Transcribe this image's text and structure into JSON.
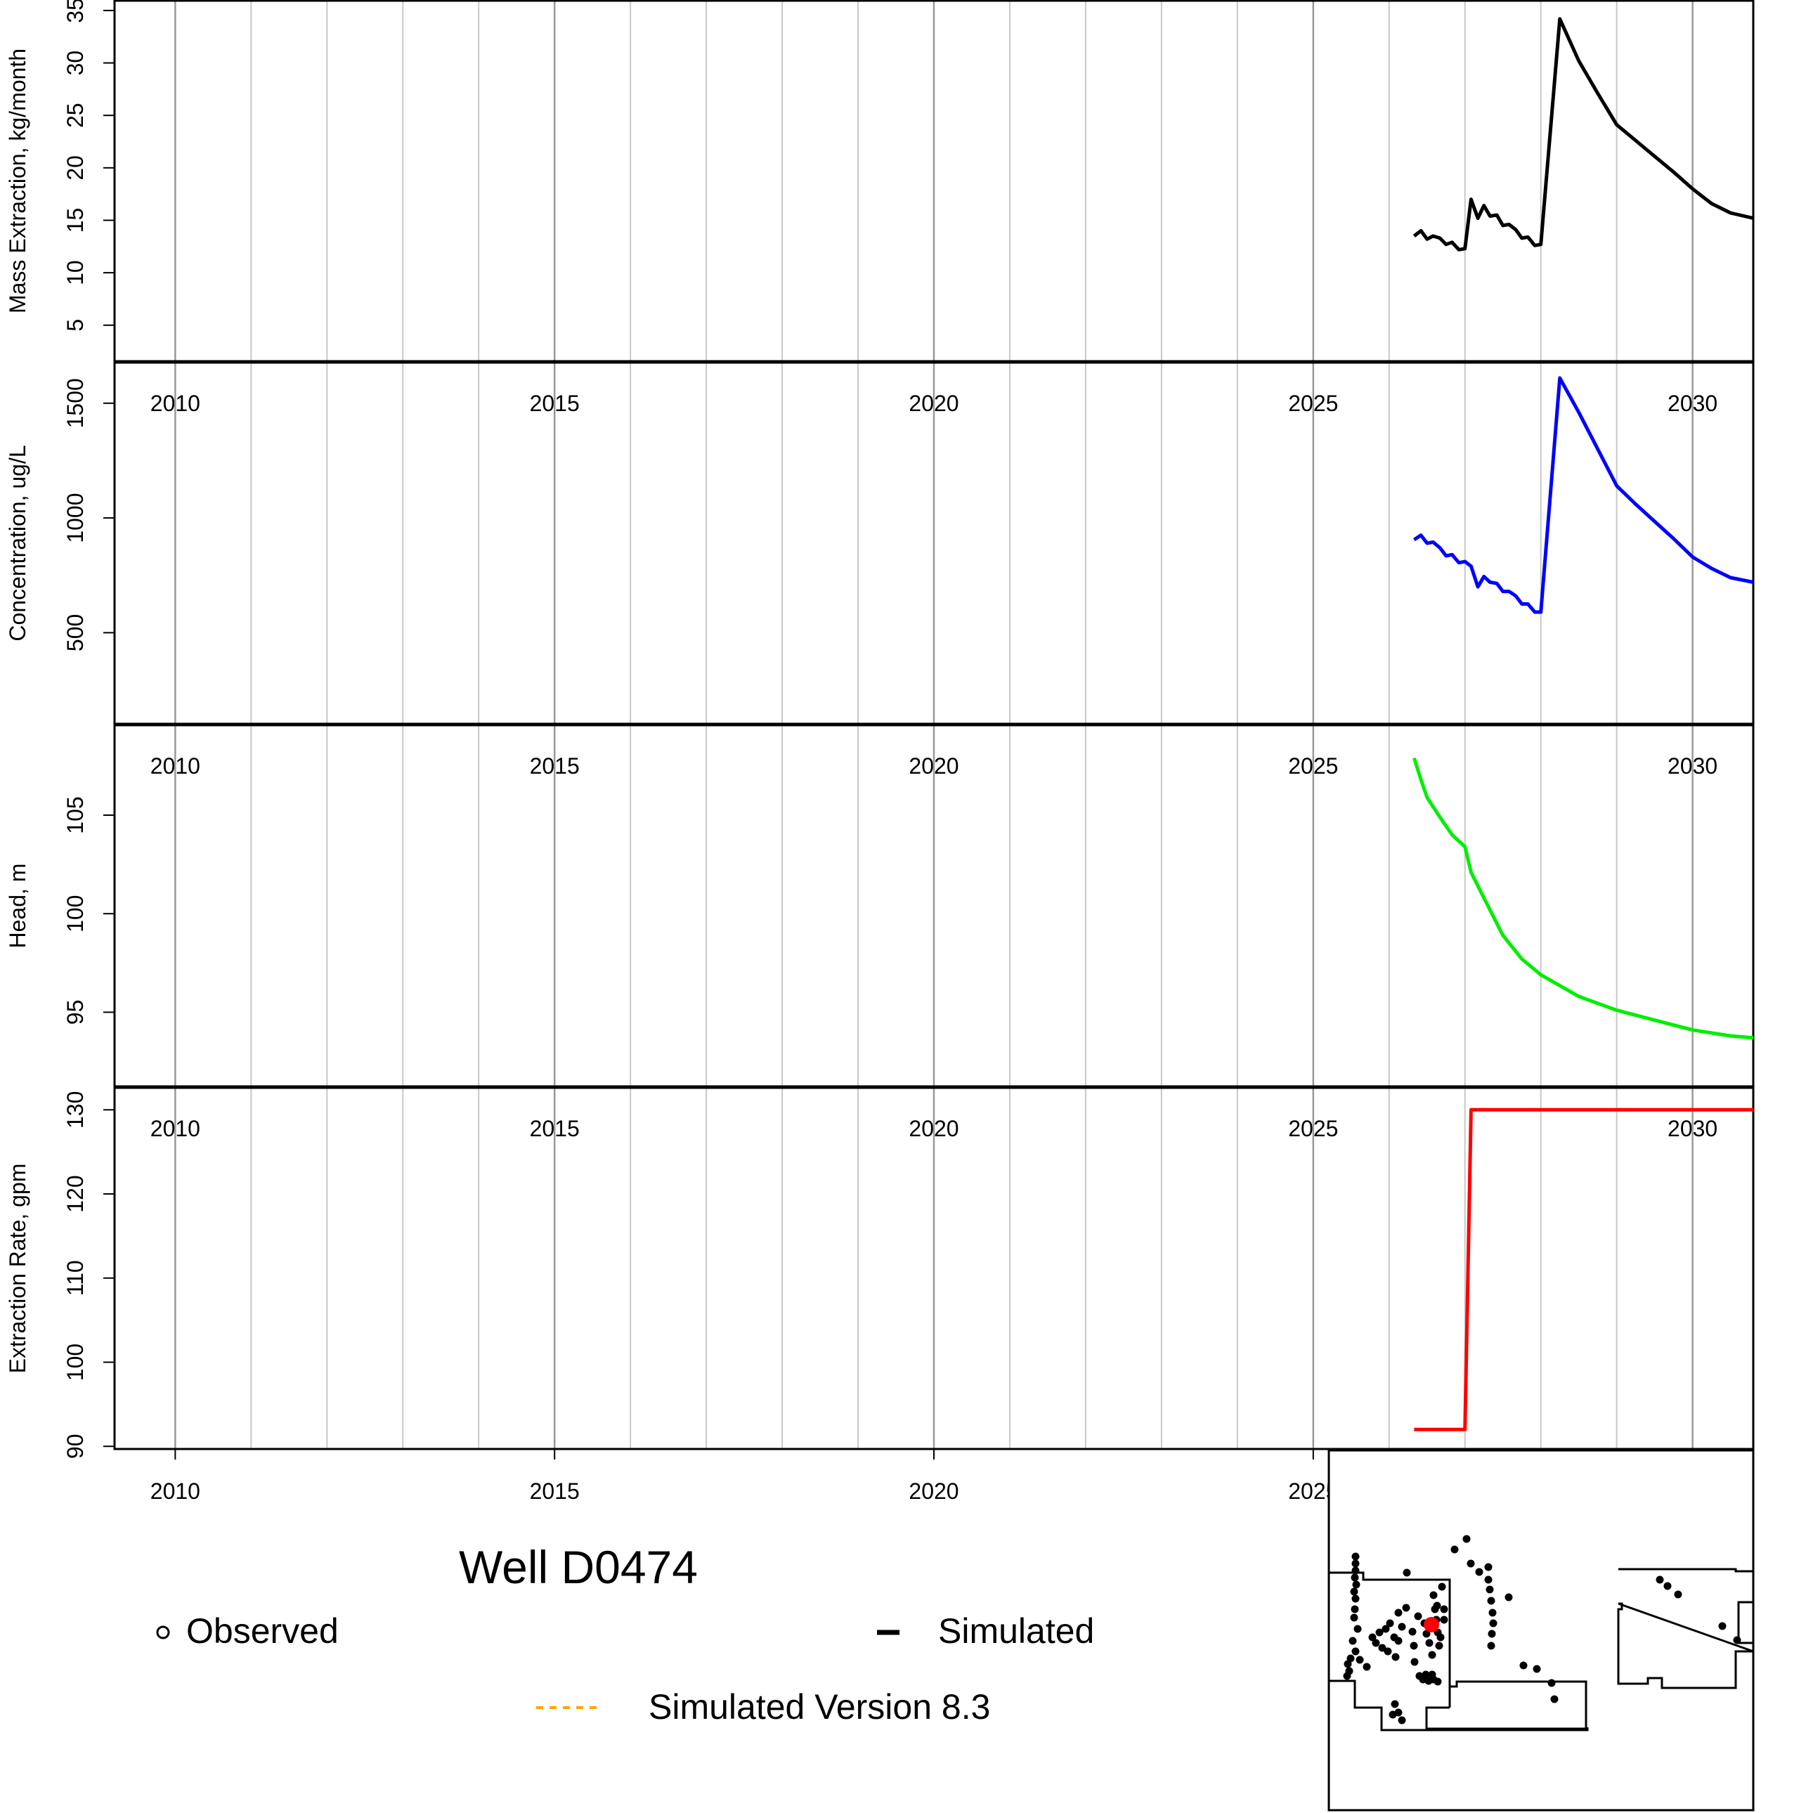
{
  "well_title": "Well D0474",
  "legend": {
    "observed": "Observed",
    "simulated": "Simulated",
    "simulated_v83": "Simulated Version 8.3"
  },
  "colors": {
    "mass": "#000000",
    "concentration": "#0000ff",
    "head": "#00ee00",
    "rate": "#ff0000",
    "v83": "#ffa500",
    "grid": "#c8c8c8",
    "grid_major": "#999999",
    "locator_well": "#ff0000",
    "locator_wells": "#000000"
  },
  "chart_data": [
    {
      "type": "line",
      "ylabel": "Mass Extraction, kg/month",
      "xlim": [
        2009.2,
        2030.8
      ],
      "ylim": [
        1.5,
        36
      ],
      "yticks": [
        5,
        10,
        15,
        20,
        25,
        30,
        35
      ],
      "xticks": [
        2010,
        2015,
        2020,
        2025,
        2030
      ],
      "series": [
        {
          "color": "mass",
          "x": [
            2026.33,
            2026.42,
            2026.5,
            2026.58,
            2026.67,
            2026.75,
            2026.83,
            2026.92,
            2027.0,
            2027.08,
            2027.17,
            2027.25,
            2027.33,
            2027.42,
            2027.5,
            2027.58,
            2027.67,
            2027.75,
            2027.83,
            2027.92,
            2028.0,
            2028.25,
            2028.5,
            2028.75,
            2029.0,
            2029.25,
            2029.5,
            2029.75,
            2030.0,
            2030.25,
            2030.5,
            2030.8
          ],
          "y": [
            13.5,
            14.0,
            13.2,
            13.5,
            13.3,
            12.7,
            12.9,
            12.2,
            12.3,
            17.0,
            15.2,
            16.4,
            15.4,
            15.5,
            14.5,
            14.6,
            14.1,
            13.3,
            13.4,
            12.6,
            12.7,
            34.2,
            30.2,
            27.1,
            24.1,
            22.6,
            21.1,
            19.6,
            18.0,
            16.6,
            15.7,
            15.2
          ]
        }
      ]
    },
    {
      "type": "line",
      "ylabel": "Concentration, ug/L",
      "xlim": [
        2009.2,
        2030.8
      ],
      "ylim": [
        100,
        1680
      ],
      "yticks": [
        500,
        1000,
        1500
      ],
      "xticks": [
        2010,
        2015,
        2020,
        2025,
        2030
      ],
      "series": [
        {
          "color": "concentration",
          "x": [
            2026.33,
            2026.42,
            2026.5,
            2026.58,
            2026.67,
            2026.75,
            2026.83,
            2026.92,
            2027.0,
            2027.08,
            2027.17,
            2027.25,
            2027.33,
            2027.42,
            2027.5,
            2027.58,
            2027.67,
            2027.75,
            2027.83,
            2027.92,
            2028.0,
            2028.25,
            2028.5,
            2028.75,
            2029.0,
            2029.25,
            2029.5,
            2029.75,
            2030.0,
            2030.25,
            2030.5,
            2030.8
          ],
          "y": [
            905,
            925,
            890,
            895,
            870,
            835,
            840,
            805,
            810,
            790,
            700,
            745,
            720,
            715,
            680,
            680,
            660,
            625,
            625,
            590,
            590,
            1610,
            1460,
            1300,
            1140,
            1060,
            985,
            910,
            830,
            780,
            740,
            720
          ]
        }
      ]
    },
    {
      "type": "line",
      "ylabel": "Head, m",
      "xlim": [
        2009.2,
        2030.8
      ],
      "ylim": [
        91.2,
        109.6
      ],
      "yticks": [
        95,
        100,
        105
      ],
      "xticks": [
        2010,
        2015,
        2020,
        2025,
        2030
      ],
      "series": [
        {
          "color": "head",
          "x": [
            2026.33,
            2026.42,
            2026.5,
            2026.67,
            2026.83,
            2027.0,
            2027.08,
            2027.25,
            2027.5,
            2027.75,
            2028.0,
            2028.5,
            2029.0,
            2029.5,
            2030.0,
            2030.5,
            2030.8
          ],
          "y": [
            107.9,
            106.8,
            105.9,
            104.9,
            104.0,
            103.4,
            102.1,
            100.8,
            98.9,
            97.7,
            96.9,
            95.8,
            95.1,
            94.6,
            94.1,
            93.8,
            93.7
          ]
        }
      ]
    },
    {
      "type": "line",
      "ylabel": "Extraction Rate, gpm",
      "xlim": [
        2009.2,
        2030.8
      ],
      "ylim": [
        89.6,
        132.7
      ],
      "yticks": [
        90,
        100,
        110,
        120,
        130
      ],
      "xticks": [
        2010,
        2015,
        2020,
        2025,
        2030
      ],
      "series": [
        {
          "color": "rate",
          "x": [
            2026.33,
            2027.0,
            2027.08,
            2030.8
          ],
          "y": [
            92,
            92,
            130,
            130
          ]
        }
      ]
    }
  ]
}
